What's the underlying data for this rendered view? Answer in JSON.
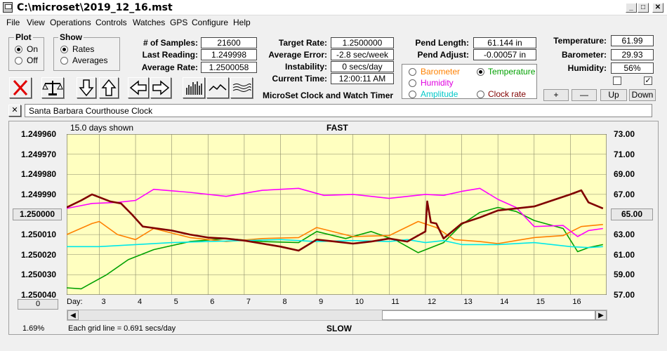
{
  "window": {
    "title": "C:\\microset\\2019_12_16.mst"
  },
  "menu": [
    "File",
    "View",
    "Operations",
    "Controls",
    "Watches",
    "GPS",
    "Configure",
    "Help"
  ],
  "plot_group": {
    "title": "Plot",
    "on": "On",
    "off": "Off",
    "selected": "On"
  },
  "show_group": {
    "title": "Show",
    "rates": "Rates",
    "averages": "Averages",
    "selected": "Rates"
  },
  "stats": {
    "samples_label": "# of Samples:",
    "samples": "21600",
    "last_label": "Last Reading:",
    "last": "1.249998",
    "avg_rate_label": "Average Rate:",
    "avg_rate": "1.2500058",
    "target_label": "Target Rate:",
    "target": "1.2500000",
    "avg_err_label": "Average Error:",
    "avg_err": "-2.8 sec/week",
    "instab_label": "Instability:",
    "instab": "0 secs/day",
    "time_label": "Current Time:",
    "time": "12:00:11 AM",
    "pend_len_label": "Pend Length:",
    "pend_len": "61.144 in",
    "pend_adj_label": "Pend Adjust:",
    "pend_adj": "-0.00057 in",
    "temp_label": "Temperature:",
    "temp": "61.99",
    "baro_label": "Barometer:",
    "baro": "29.93",
    "hum_label": "Humidity:",
    "hum": "56%"
  },
  "app_name": "MicroSet Clock and Watch Timer",
  "series_options": {
    "barometer": "Barometer",
    "temperature": "Temperature",
    "humidity": "Humidity",
    "amplitude": "Amplitude",
    "clock_rate": "Clock rate",
    "selected": "Temperature"
  },
  "adjust_buttons": {
    "plus": "+",
    "minus": "—",
    "up": "Up",
    "down": "Down"
  },
  "clock_name": "Santa Barbara Courthouse Clock",
  "close_x": "✕",
  "chart_header": {
    "days_shown": "15.0 days shown",
    "fast": "FAST",
    "slow": "SLOW",
    "grid_note": "Each grid line = 0.691 secs/day",
    "day_label": "Day:"
  },
  "left_panel": {
    "center_value": "1.250000",
    "zero_button": "0",
    "percent": "1.69%"
  },
  "right_panel": {
    "center_value": "65.00"
  },
  "colors": {
    "temperature": "#00a000",
    "barometer": "#ff8000",
    "humidity": "#ff00ff",
    "amplitude": "#00e8e8",
    "rate": "#800000",
    "plot_bg": "#ffffc0"
  },
  "chart_data": {
    "type": "line",
    "x_label": "Day",
    "x_ticks": [
      3,
      4,
      5,
      6,
      7,
      8,
      9,
      10,
      11,
      12,
      13,
      14,
      15,
      16
    ],
    "xlim": [
      2.1,
      17.0
    ],
    "y_left_ticks": [
      "1.249960",
      "1.249970",
      "1.249980",
      "1.249990",
      "1.250000",
      "1.250010",
      "1.250020",
      "1.250030",
      "1.250040"
    ],
    "y_left_range": [
      1.24996,
      1.25004
    ],
    "y_right_ticks": [
      "73.00",
      "71.00",
      "69.00",
      "67.00",
      "65.00",
      "63.00",
      "61.00",
      "59.00",
      "57.00"
    ],
    "y_right_range": [
      57,
      73
    ],
    "series": [
      {
        "key": "temperature",
        "x": [
          2.1,
          2.5,
          2.8,
          3.2,
          3.8,
          4.5,
          5.5,
          6.5,
          7.5,
          8.5,
          9.0,
          9.8,
          10.5,
          11.2,
          11.8,
          12.5,
          13.0,
          13.5,
          14.0,
          14.5,
          15.0,
          15.8,
          16.2,
          16.5,
          16.9
        ],
        "y": [
          57.7,
          57.6,
          58.2,
          59.0,
          60.5,
          61.5,
          62.3,
          62.6,
          62.3,
          62.2,
          63.3,
          62.6,
          63.3,
          62.4,
          61.2,
          62.2,
          64.0,
          65.2,
          65.7,
          65.3,
          64.4,
          63.6,
          61.3,
          61.7,
          62.0
        ]
      },
      {
        "key": "barometer",
        "x": [
          2.1,
          2.8,
          3.0,
          3.5,
          4.0,
          4.5,
          5.5,
          6.5,
          7.5,
          8.5,
          9.0,
          10.0,
          11.0,
          11.8,
          12.3,
          12.8,
          13.5,
          14.0,
          14.5,
          15.0,
          15.8,
          16.3,
          16.9
        ],
        "y": [
          63.0,
          64.1,
          64.3,
          63.0,
          62.5,
          63.6,
          62.7,
          62.3,
          62.6,
          62.7,
          63.7,
          62.8,
          62.9,
          64.3,
          63.7,
          62.5,
          62.3,
          62.1,
          62.4,
          62.7,
          62.9,
          63.8,
          64.0
        ]
      },
      {
        "key": "humidity",
        "x": [
          2.1,
          2.8,
          3.5,
          4.0,
          4.5,
          5.5,
          6.5,
          7.5,
          8.5,
          9.2,
          10.0,
          11.0,
          12.0,
          12.5,
          13.0,
          13.5,
          14.0,
          14.5,
          15.0,
          15.8,
          16.2,
          16.5,
          16.9
        ],
        "y": [
          65.6,
          66.1,
          66.2,
          66.4,
          67.5,
          67.2,
          66.8,
          67.4,
          67.6,
          66.9,
          67.0,
          66.6,
          67.0,
          66.9,
          67.3,
          67.6,
          66.5,
          65.7,
          63.8,
          63.9,
          62.8,
          63.4,
          63.6
        ]
      },
      {
        "key": "amplitude",
        "x": [
          2.1,
          3.0,
          4.0,
          5.0,
          6.0,
          7.0,
          8.0,
          9.0,
          10.0,
          11.0,
          11.5,
          12.0,
          12.5,
          13.0,
          14.0,
          15.0,
          16.0,
          16.5,
          16.9
        ],
        "y": [
          61.8,
          61.8,
          62.0,
          62.2,
          62.3,
          62.4,
          62.5,
          62.3,
          62.4,
          62.3,
          62.5,
          62.2,
          62.4,
          62.0,
          62.0,
          62.2,
          61.8,
          61.7,
          61.8
        ]
      },
      {
        "key": "rate",
        "x": [
          2.1,
          2.5,
          2.8,
          3.3,
          3.6,
          3.9,
          4.2,
          4.6,
          5.0,
          5.5,
          6.0,
          6.5,
          7.0,
          7.5,
          8.0,
          8.5,
          9.0,
          9.5,
          10.0,
          10.5,
          11.0,
          11.5,
          12.0,
          12.05,
          12.15,
          12.3,
          12.5,
          13.0,
          13.5,
          14.0,
          14.5,
          15.0,
          15.5,
          16.0,
          16.3,
          16.5,
          16.9
        ],
        "y": [
          65.7,
          66.4,
          67.0,
          66.3,
          66.1,
          65.0,
          63.8,
          63.6,
          63.4,
          63.0,
          62.7,
          62.6,
          62.4,
          62.1,
          61.8,
          61.4,
          62.5,
          62.3,
          62.1,
          62.3,
          62.6,
          62.3,
          63.3,
          66.3,
          64.2,
          64.1,
          62.6,
          64.1,
          64.7,
          65.4,
          65.6,
          65.8,
          66.4,
          67.0,
          67.4,
          66.2,
          65.6
        ]
      }
    ]
  }
}
